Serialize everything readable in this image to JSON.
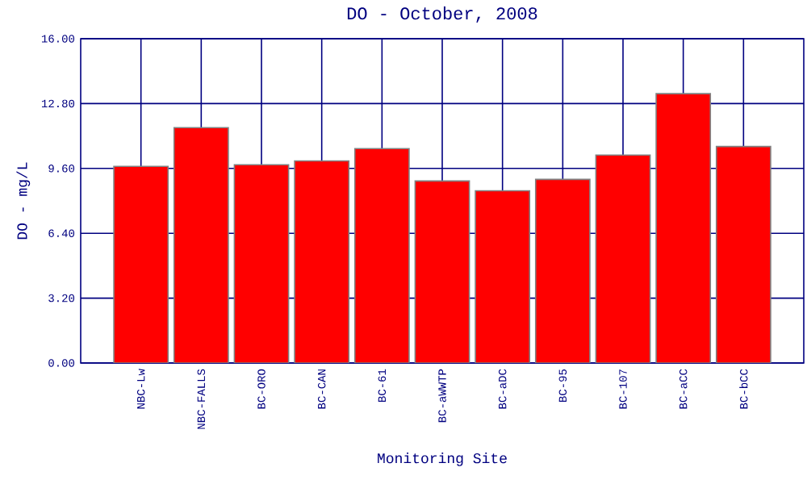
{
  "chart_data": {
    "type": "bar",
    "title": "DO - October, 2008",
    "xlabel": "Monitoring Site",
    "ylabel": "DO - mg/L",
    "categories": [
      "NBC-Lw",
      "NBC-FALLS",
      "BC-ORO",
      "BC-CAN",
      "BC-61",
      "BC-aWWTP",
      "BC-aDC",
      "BC-95",
      "BC-107",
      "BC-aCC",
      "BC-bCC"
    ],
    "values": [
      9.7,
      11.61,
      9.78,
      9.97,
      10.58,
      8.98,
      8.5,
      9.06,
      10.26,
      13.29,
      10.68
    ],
    "color": "#ff0000",
    "ylim": [
      0,
      16
    ],
    "yticks": [
      {
        "value": 0,
        "label": "0.00"
      },
      {
        "value": 3.2,
        "label": "3.20"
      },
      {
        "value": 6.4,
        "label": "6.40"
      },
      {
        "value": 9.6,
        "label": "9.60"
      },
      {
        "value": 12.8,
        "label": "12.80"
      },
      {
        "value": 16,
        "label": "16.00"
      }
    ],
    "grid": true
  }
}
